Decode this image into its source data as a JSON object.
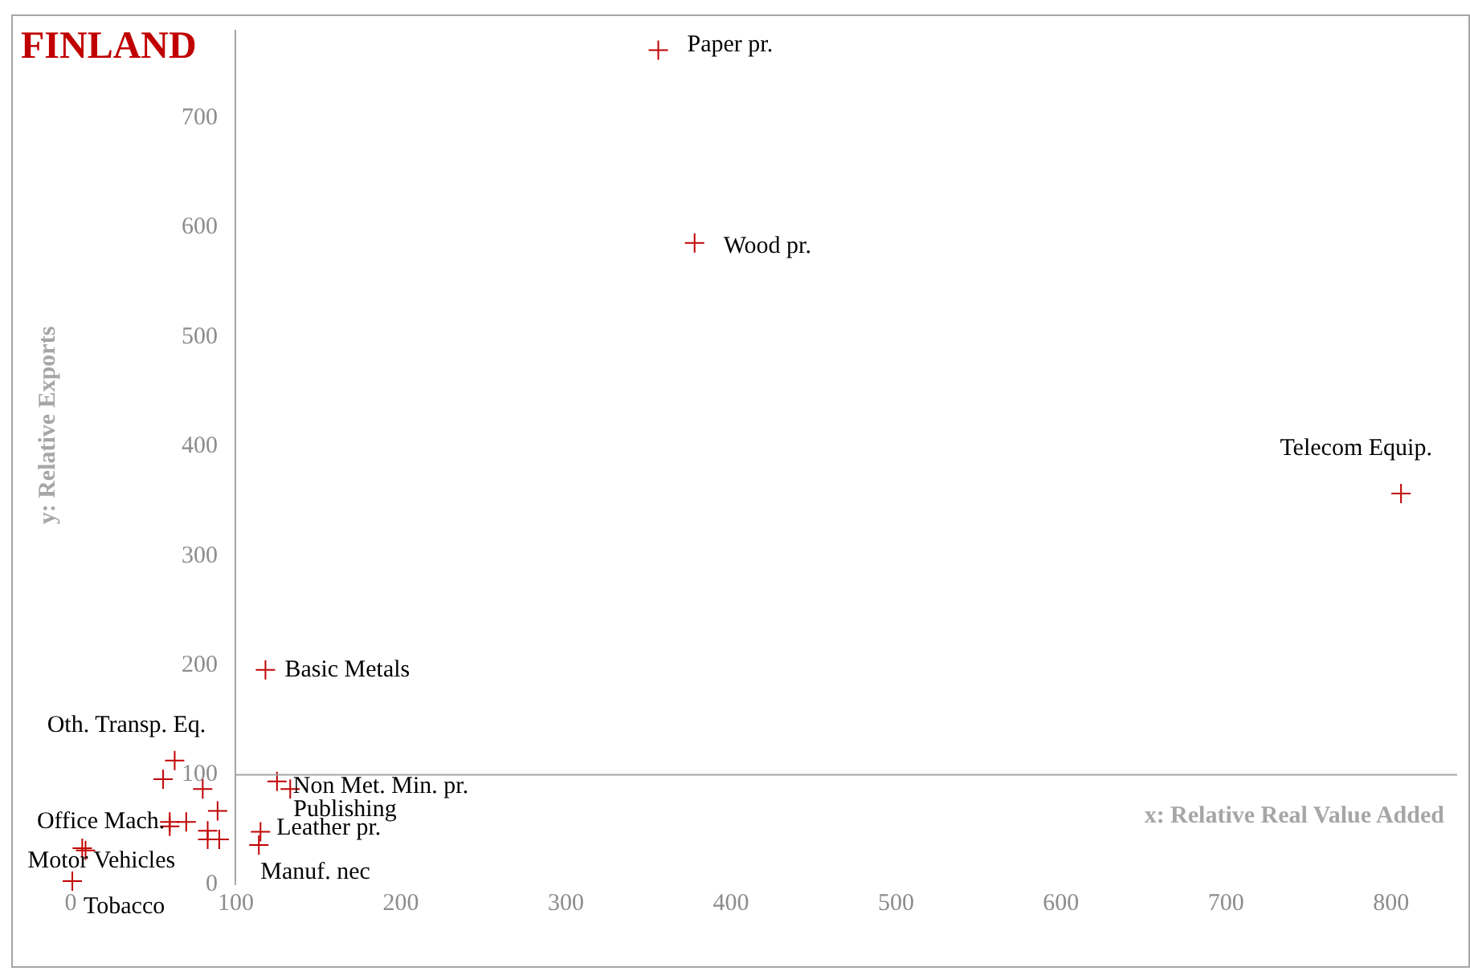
{
  "chart_data": {
    "type": "scatter",
    "title": "FINLAND",
    "xlabel": "x: Relative Real Value Added",
    "ylabel": "y: Relative Exports",
    "x": [
      356,
      378,
      806,
      118,
      63,
      56,
      80,
      89,
      60,
      60,
      70,
      83,
      83,
      90,
      7,
      9,
      1,
      125,
      133,
      115,
      114
    ],
    "series": [
      {
        "color": "#c00000",
        "values": [
          762,
          586,
          357,
          196,
          113,
          96,
          87,
          67,
          57,
          53,
          57,
          49,
          41,
          41,
          33,
          31,
          3,
          94,
          87,
          48,
          36
        ]
      }
    ],
    "xlim": [
      0,
      840
    ],
    "ylim": [
      0,
      780
    ],
    "xticks": [
      0,
      100,
      200,
      300,
      400,
      500,
      600,
      700,
      800
    ],
    "yticks": [
      0,
      100,
      200,
      300,
      400,
      500,
      600,
      700
    ],
    "ref_lines": [
      {
        "axis": "y",
        "value": 100,
        "color": "#a6a6a6"
      }
    ],
    "marker": "cross",
    "grid": false,
    "legend": false,
    "annotations": [
      {
        "text": "Paper pr.",
        "x": 356,
        "y": 762
      },
      {
        "text": "Wood pr.",
        "x": 378,
        "y": 586
      },
      {
        "text": "Telecom Equip.",
        "x": 806,
        "y": 357
      },
      {
        "text": "Basic Metals",
        "x": 118,
        "y": 196
      },
      {
        "text": "Oth. Transp. Eq.",
        "x": 63,
        "y": 113
      },
      {
        "text": "Non Met. Min. pr.",
        "x": 125,
        "y": 94
      },
      {
        "text": "Publishing",
        "x": 133,
        "y": 87
      },
      {
        "text": "Office Mach.",
        "x": 60,
        "y": 57
      },
      {
        "text": "Leather pr.",
        "x": 115,
        "y": 48
      },
      {
        "text": "Motor Vehicles",
        "x": 7,
        "y": 33
      },
      {
        "text": "Manuf. nec",
        "x": 114,
        "y": 36
      },
      {
        "text": "Tobacco",
        "x": 1,
        "y": 3
      }
    ]
  }
}
